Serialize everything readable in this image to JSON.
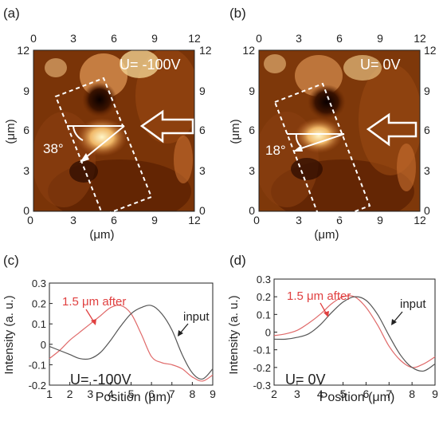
{
  "panels": {
    "a": {
      "label": "(a)",
      "voltage": "U= -100V",
      "angle": "38°",
      "axis_unit": "(μm)",
      "ticks": [
        "0",
        "3",
        "6",
        "9",
        "12"
      ],
      "arrow": "hollow-left-arrow"
    },
    "b": {
      "label": "(b)",
      "voltage": "U= 0V",
      "angle": "18°",
      "axis_unit": "(μm)",
      "ticks": [
        "0",
        "3",
        "6",
        "9",
        "12"
      ],
      "arrow": "hollow-left-arrow"
    }
  },
  "chart_data": [
    {
      "panel": "(c)",
      "type": "line",
      "xlabel": "Position (μm)",
      "ylabel": "Intensity (a. u.)",
      "xlim": [
        1,
        9
      ],
      "ylim": [
        -0.2,
        0.3
      ],
      "xticks": [
        "1",
        "2",
        "3",
        "4",
        "5",
        "6",
        "7",
        "8",
        "9"
      ],
      "yticks": [
        "-0.2",
        "-0.1",
        "0",
        "0.1",
        "0.2",
        "0.3"
      ],
      "annotation": "U= -100V",
      "series": [
        {
          "name": "1.5 μm after",
          "color": "#e06a6a",
          "x": [
            1.0,
            1.5,
            2.0,
            2.5,
            3.0,
            3.5,
            4.0,
            4.5,
            5.0,
            5.5,
            6.0,
            6.5,
            7.0,
            7.5,
            8.0,
            8.5,
            9.0
          ],
          "y": [
            -0.07,
            -0.03,
            0.02,
            0.06,
            0.1,
            0.14,
            0.18,
            0.19,
            0.15,
            0.05,
            -0.06,
            -0.09,
            -0.1,
            -0.12,
            -0.16,
            -0.18,
            -0.15
          ]
        },
        {
          "name": "input",
          "color": "#555555",
          "x": [
            1.0,
            1.5,
            2.0,
            2.5,
            3.0,
            3.5,
            4.0,
            4.5,
            5.0,
            5.5,
            6.0,
            6.5,
            7.0,
            7.5,
            8.0,
            8.5,
            9.0
          ],
          "y": [
            -0.01,
            -0.03,
            -0.05,
            -0.07,
            -0.07,
            -0.04,
            0.02,
            0.09,
            0.15,
            0.18,
            0.19,
            0.15,
            0.07,
            -0.05,
            -0.14,
            -0.17,
            -0.12
          ]
        }
      ]
    },
    {
      "panel": "(d)",
      "type": "line",
      "xlabel": "Position (μm)",
      "ylabel": "Intensity (a. u.)",
      "xlim": [
        2,
        9
      ],
      "ylim": [
        -0.3,
        0.3
      ],
      "xticks": [
        "2",
        "3",
        "4",
        "5",
        "6",
        "7",
        "8",
        "9"
      ],
      "yticks": [
        "-0.3",
        "-0.2",
        "-0.1",
        "0",
        "0.1",
        "0.2",
        "0.3"
      ],
      "annotation": "U= 0V",
      "series": [
        {
          "name": "1.5 μm after",
          "color": "#e06a6a",
          "x": [
            2.0,
            2.5,
            3.0,
            3.5,
            4.0,
            4.5,
            5.0,
            5.5,
            6.0,
            6.5,
            7.0,
            7.5,
            8.0,
            8.5,
            9.0
          ],
          "y": [
            -0.02,
            -0.01,
            0.01,
            0.05,
            0.1,
            0.16,
            0.2,
            0.2,
            0.14,
            0.04,
            -0.08,
            -0.16,
            -0.2,
            -0.18,
            -0.14
          ]
        },
        {
          "name": "input",
          "color": "#555555",
          "x": [
            2.0,
            2.5,
            3.0,
            3.5,
            4.0,
            4.5,
            5.0,
            5.5,
            6.0,
            6.5,
            7.0,
            7.5,
            8.0,
            8.5,
            9.0
          ],
          "y": [
            -0.04,
            -0.04,
            -0.03,
            -0.01,
            0.04,
            0.11,
            0.17,
            0.2,
            0.18,
            0.1,
            -0.02,
            -0.13,
            -0.2,
            -0.22,
            -0.18
          ]
        }
      ]
    }
  ]
}
